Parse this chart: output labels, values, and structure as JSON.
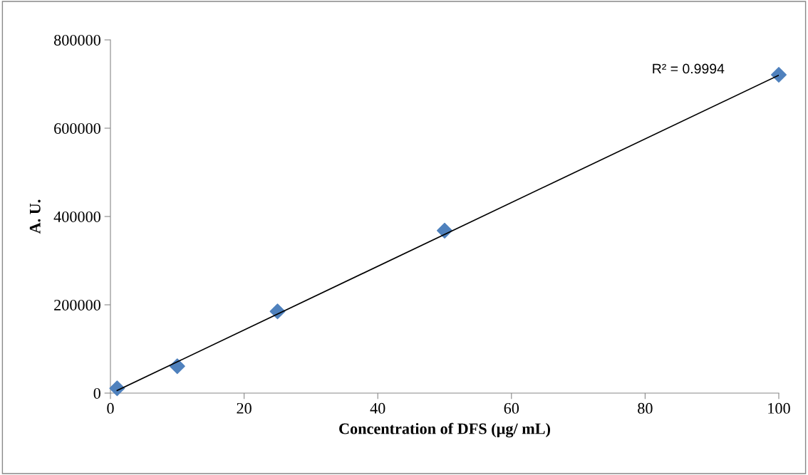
{
  "chart_data": {
    "type": "scatter",
    "xlabel": "Concentration of DFS (µg/ mL)",
    "ylabel": "A. U.",
    "x": [
      1,
      10,
      25,
      50,
      100
    ],
    "series": [
      {
        "color": "#4f81bd",
        "marker": "diamond",
        "values": [
          11000,
          61000,
          185000,
          368000,
          721000
        ]
      },
      {
        "type": "line",
        "color": "#000000",
        "x": [
          1,
          100
        ],
        "values": [
          6000,
          720000
        ]
      }
    ],
    "annotations": [
      "R² = 0.9994"
    ],
    "xlim": [
      0,
      100
    ],
    "xticks": [
      0,
      20,
      40,
      60,
      80,
      100
    ],
    "ylim": [
      0,
      800000
    ],
    "yticks": [
      0,
      200000,
      400000,
      600000,
      800000
    ],
    "grid": false,
    "legend": false
  }
}
